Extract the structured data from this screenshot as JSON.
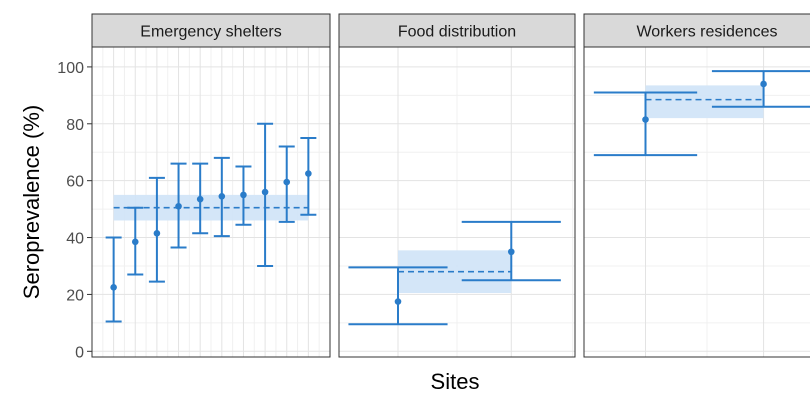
{
  "chart_data": [
    {
      "type": "scatter",
      "facet": "Emergency shelters",
      "ylabel": "Seroprevalence (%)",
      "xlabel": "Sites",
      "ylim": [
        -2,
        107
      ],
      "yticks": [
        0,
        20,
        40,
        60,
        80,
        100
      ],
      "point_color": "#2a7cc9",
      "band_color": "#cfe3f7",
      "pooled": {
        "estimate": 50.5,
        "lower": 46,
        "upper": 55
      },
      "points": [
        {
          "site": 1,
          "estimate": 22.5,
          "lower": 10.5,
          "upper": 40
        },
        {
          "site": 2,
          "estimate": 38.5,
          "lower": 27,
          "upper": 50.5
        },
        {
          "site": 3,
          "estimate": 41.5,
          "lower": 24.5,
          "upper": 61
        },
        {
          "site": 4,
          "estimate": 51,
          "lower": 36.5,
          "upper": 66
        },
        {
          "site": 5,
          "estimate": 53.5,
          "lower": 41.5,
          "upper": 66
        },
        {
          "site": 6,
          "estimate": 54.5,
          "lower": 40.5,
          "upper": 68
        },
        {
          "site": 7,
          "estimate": 55,
          "lower": 44.5,
          "upper": 65
        },
        {
          "site": 8,
          "estimate": 56,
          "lower": 30,
          "upper": 80
        },
        {
          "site": 9,
          "estimate": 59.5,
          "lower": 45.5,
          "upper": 72
        },
        {
          "site": 10,
          "estimate": 62.5,
          "lower": 48,
          "upper": 75
        }
      ]
    },
    {
      "type": "scatter",
      "facet": "Food distribution",
      "pooled": {
        "estimate": 28,
        "lower": 20.5,
        "upper": 35.5
      },
      "points": [
        {
          "site": 1,
          "estimate": 17.5,
          "lower": 9.5,
          "upper": 29.5
        },
        {
          "site": 2,
          "estimate": 35,
          "lower": 25,
          "upper": 45.5
        }
      ]
    },
    {
      "type": "scatter",
      "facet": "Workers residences",
      "pooled": {
        "estimate": 88.5,
        "lower": 82,
        "upper": 93.5
      },
      "points": [
        {
          "site": 1,
          "estimate": 81.5,
          "lower": 69,
          "upper": 91
        },
        {
          "site": 2,
          "estimate": 94,
          "lower": 86,
          "upper": 98.5
        }
      ]
    }
  ]
}
